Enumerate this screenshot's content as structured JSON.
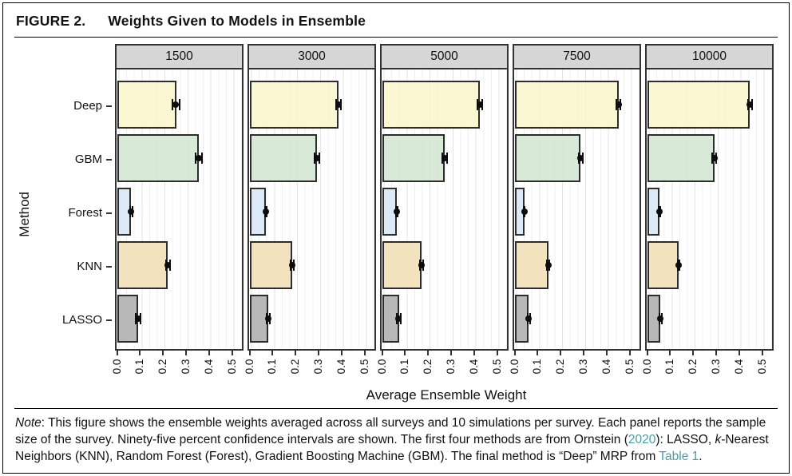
{
  "figure": {
    "label": "FIGURE 2.",
    "title": "Weights Given to Models in Ensemble"
  },
  "chart_data": {
    "type": "bar",
    "orientation": "horizontal",
    "facet_by": "survey sample size",
    "categories": [
      "Deep",
      "GBM",
      "Forest",
      "KNN",
      "LASSO"
    ],
    "xlabel": "Average Ensemble Weight",
    "ylabel": "Method",
    "x_ticks": [
      "0.0",
      "0.1",
      "0.2",
      "0.3",
      "0.4",
      "0.5"
    ],
    "x_tick_values": [
      0.0,
      0.1,
      0.2,
      0.3,
      0.4,
      0.5
    ],
    "xlim": [
      0,
      0.545
    ],
    "grid": "on",
    "legend_position": "none",
    "error_bars": "95% confidence intervals",
    "panels": [
      {
        "title": "1500",
        "values": [
          0.25,
          0.35,
          0.055,
          0.215,
          0.085
        ],
        "ci": [
          0.018,
          0.018,
          0.008,
          0.013,
          0.014
        ]
      },
      {
        "title": "3000",
        "values": [
          0.38,
          0.285,
          0.065,
          0.18,
          0.075
        ],
        "ci": [
          0.015,
          0.014,
          0.006,
          0.01,
          0.01
        ]
      },
      {
        "title": "5000",
        "values": [
          0.42,
          0.265,
          0.057,
          0.165,
          0.066
        ],
        "ci": [
          0.014,
          0.013,
          0.006,
          0.01,
          0.011
        ]
      },
      {
        "title": "7500",
        "values": [
          0.445,
          0.28,
          0.036,
          0.14,
          0.055
        ],
        "ci": [
          0.012,
          0.012,
          0.005,
          0.009,
          0.008
        ]
      },
      {
        "title": "10000",
        "values": [
          0.44,
          0.285,
          0.047,
          0.13,
          0.052
        ],
        "ci": [
          0.012,
          0.012,
          0.006,
          0.008,
          0.008
        ]
      }
    ],
    "bar_colors": {
      "Deep": "rgba(250,246,206,0.92)",
      "GBM": "rgba(214,231,213,0.92)",
      "Forest": "rgba(216,232,245,0.92)",
      "KNN": "rgba(242,223,184,0.92)",
      "LASSO": "rgba(178,178,178,0.92)"
    },
    "accent_colors": {
      "panel_header_bg": "#d6d6d6",
      "panel_border": "#333333",
      "bar_border": "#2d2d2d",
      "error_bar": "#0d0d0d",
      "link": "#4a9da8"
    }
  },
  "note": {
    "segments": [
      {
        "text": "Note",
        "style": "italic"
      },
      {
        "text": ": This figure shows the ensemble weights averaged across all surveys and 10 simulations per survey. Each panel reports the sample size of the survey. Ninety-five percent confidence intervals are shown. The first four methods are from Ornstein (",
        "style": "plain"
      },
      {
        "text": "2020",
        "style": "link"
      },
      {
        "text": "): LASSO, ",
        "style": "plain"
      },
      {
        "text": "k",
        "style": "italic"
      },
      {
        "text": "-Nearest Neighbors (KNN), Random Forest (Forest), Gradient Boosting Machine (GBM). The final method is “Deep” MRP from ",
        "style": "plain"
      },
      {
        "text": "Table 1",
        "style": "link"
      },
      {
        "text": ".",
        "style": "plain"
      }
    ]
  }
}
